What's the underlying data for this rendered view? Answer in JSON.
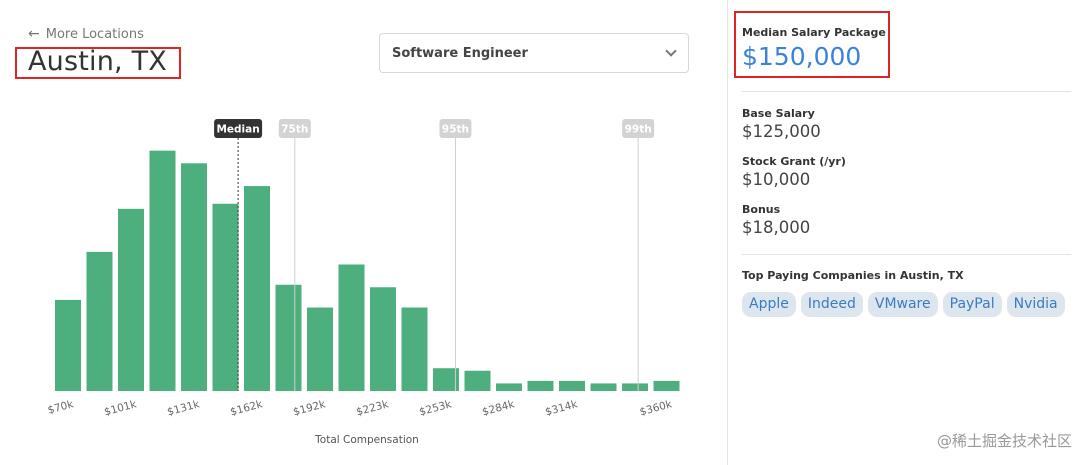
{
  "nav": {
    "back_label": "More Locations"
  },
  "location": {
    "title": "Austin, TX"
  },
  "job_select": {
    "value": "Software Engineer"
  },
  "chart_data": {
    "type": "bar",
    "xlabel": "Total Compensation",
    "ylabel": "",
    "tick_labels": [
      "$70k",
      "$101k",
      "$131k",
      "$162k",
      "$192k",
      "$223k",
      "$253k",
      "$284k",
      "$314k",
      "$360k"
    ],
    "tick_bins": [
      0,
      2,
      4,
      6,
      8,
      10,
      12,
      14,
      16,
      19
    ],
    "values": [
      36,
      55,
      72,
      95,
      90,
      74,
      81,
      42,
      33,
      50,
      41,
      33,
      9,
      8,
      3,
      4,
      4,
      3,
      3,
      4
    ],
    "ylim": [
      0,
      100
    ],
    "markers": [
      {
        "label": "Median",
        "bin": 5.4,
        "style": "dark"
      },
      {
        "label": "75th",
        "bin": 7.2,
        "style": "light"
      },
      {
        "label": "95th",
        "bin": 12.3,
        "style": "light"
      },
      {
        "label": "99th",
        "bin": 18.1,
        "style": "light"
      }
    ],
    "colors": {
      "bar": "#4caf7d",
      "median": "#333333",
      "percentile": "#cfcfcf"
    }
  },
  "summary": {
    "median_label": "Median Salary Package",
    "median_value": "$150,000",
    "base_label": "Base Salary",
    "base_value": "$125,000",
    "stock_label": "Stock Grant (/yr)",
    "stock_value": "$10,000",
    "bonus_label": "Bonus",
    "bonus_value": "$18,000"
  },
  "companies": {
    "title": "Top Paying Companies in Austin, TX",
    "items": [
      "Apple",
      "Indeed",
      "VMware",
      "PayPal",
      "Nvidia"
    ]
  },
  "watermark": "@稀土掘金技术社区"
}
